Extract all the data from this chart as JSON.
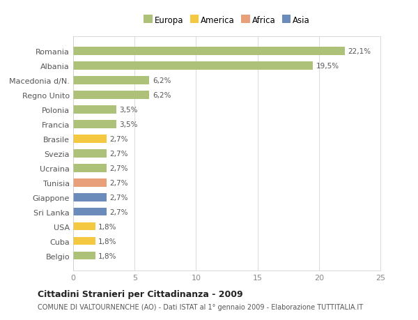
{
  "categories": [
    "Belgio",
    "Cuba",
    "USA",
    "Sri Lanka",
    "Giappone",
    "Tunisia",
    "Ucraina",
    "Svezia",
    "Brasile",
    "Francia",
    "Polonia",
    "Regno Unito",
    "Macedonia d/N.",
    "Albania",
    "Romania"
  ],
  "values": [
    1.8,
    1.8,
    1.8,
    2.7,
    2.7,
    2.7,
    2.7,
    2.7,
    2.7,
    3.5,
    3.5,
    6.2,
    6.2,
    19.5,
    22.1
  ],
  "labels": [
    "1,8%",
    "1,8%",
    "1,8%",
    "2,7%",
    "2,7%",
    "2,7%",
    "2,7%",
    "2,7%",
    "2,7%",
    "3,5%",
    "3,5%",
    "6,2%",
    "6,2%",
    "19,5%",
    "22,1%"
  ],
  "colors": [
    "#adc178",
    "#f5c842",
    "#f5c842",
    "#6b8cba",
    "#6b8cba",
    "#e8a07a",
    "#adc178",
    "#adc178",
    "#f5c842",
    "#adc178",
    "#adc178",
    "#adc178",
    "#adc178",
    "#adc178",
    "#adc178"
  ],
  "legend": {
    "Europa": "#adc178",
    "America": "#f5c842",
    "Africa": "#e8a07a",
    "Asia": "#6b8cba"
  },
  "title": "Cittadini Stranieri per Cittadinanza - 2009",
  "subtitle": "COMUNE DI VALTOURNENCHE (AO) - Dati ISTAT al 1° gennaio 2009 - Elaborazione TUTTITALIA.IT",
  "xlim": [
    0,
    25
  ],
  "xticks": [
    0,
    5,
    10,
    15,
    20,
    25
  ],
  "background_color": "#ffffff",
  "bar_background": "#ffffff",
  "grid_color": "#dddddd"
}
